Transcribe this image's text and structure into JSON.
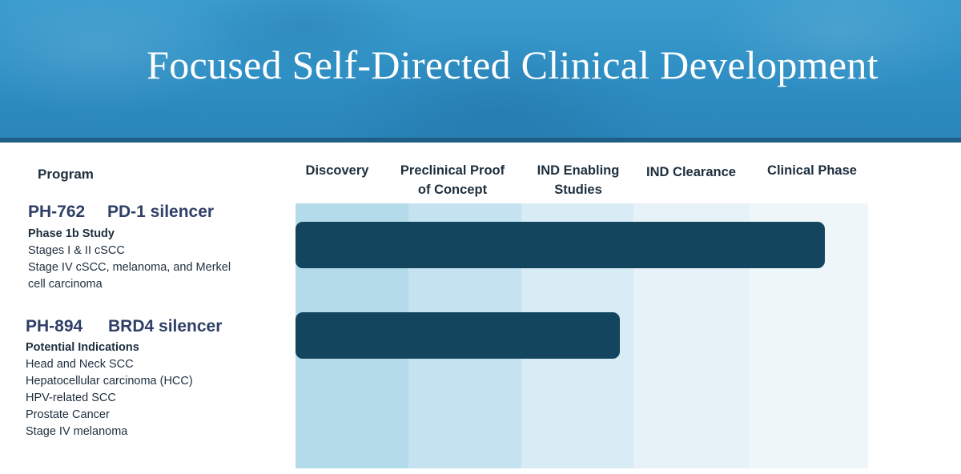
{
  "title": "Focused Self-Directed Clinical Development",
  "table_header": "Program",
  "chart_data": {
    "type": "bar",
    "orientation": "horizontal",
    "title": "Focused Self-Directed Clinical Development",
    "categories": [
      "Discovery",
      "Preclinical Proof of Concept",
      "IND Enabling Studies",
      "IND Clearance",
      "Clinical Phase"
    ],
    "category_headers": [
      [
        "Discovery"
      ],
      [
        "Preclinical Proof",
        "of Concept"
      ],
      [
        "IND Enabling",
        "Studies"
      ],
      [
        "IND Clearance"
      ],
      [
        "Clinical Phase"
      ]
    ],
    "programs": [
      {
        "code": "PH-762",
        "name": "PD-1 silencer",
        "subheading": "Phase 1b Study",
        "details": [
          "Stages I & II  cSCC",
          "Stage IV cSCC, melanoma, and Merkel",
          "cell carcinoma"
        ],
        "progress": 4.62
      },
      {
        "code": "PH-894",
        "name": "BRD4 silencer",
        "subheading": "Potential Indications",
        "details": [
          "Head and Neck SCC",
          "Hepatocellular carcinoma (HCC)",
          "HPV-related SCC",
          "Prostate Cancer",
          "Stage IV melanoma"
        ],
        "progress": 2.83
      }
    ],
    "colors": {
      "bar": "#14455f",
      "columns": [
        "#b3dbea",
        "#c4e2ef",
        "#d7ecf5",
        "#e6f2f8",
        "#eef6fa"
      ],
      "banner": "#2f8fc4"
    }
  }
}
